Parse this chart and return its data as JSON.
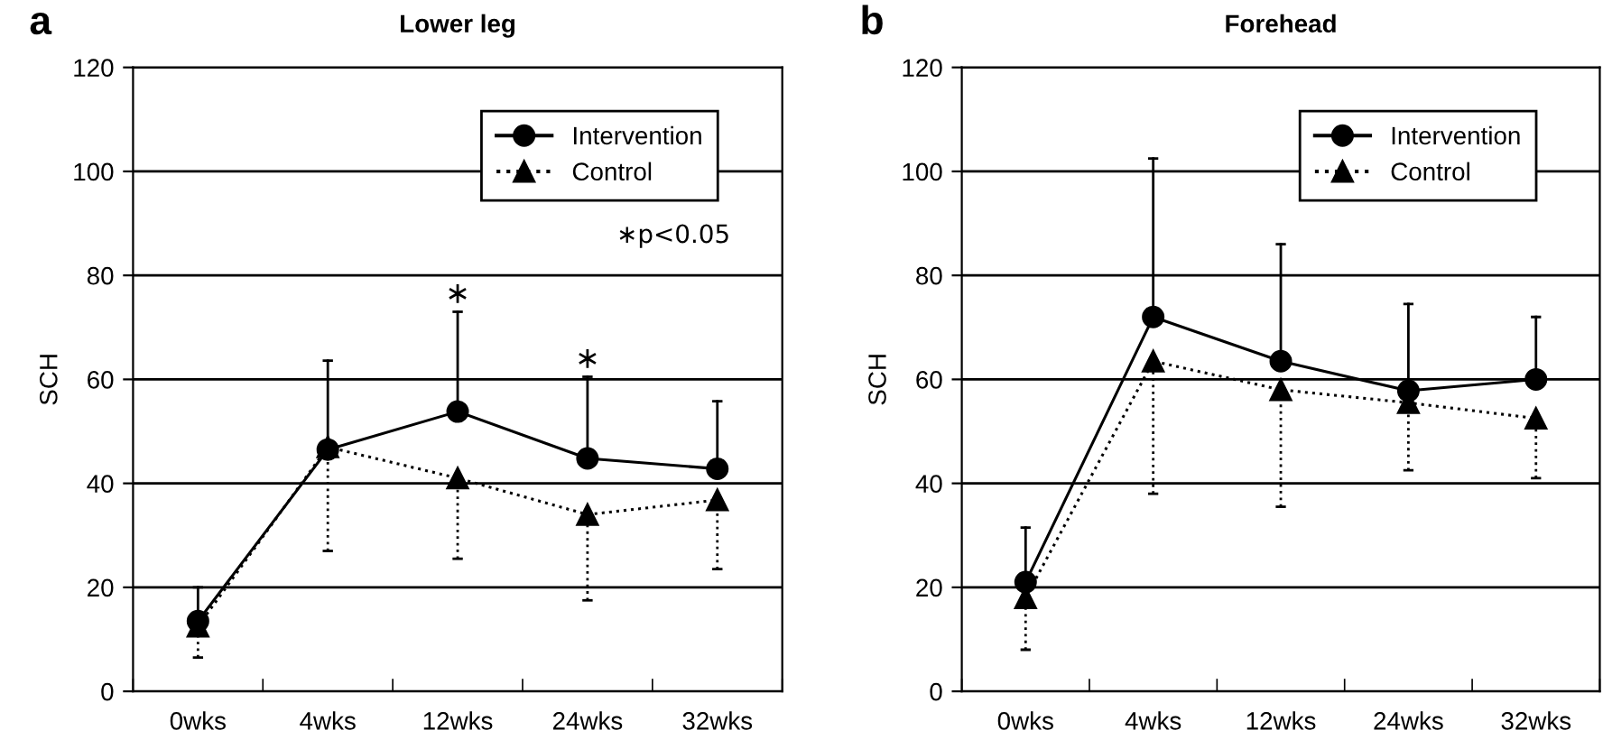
{
  "chart_data": [
    {
      "type": "line",
      "title": "Lower leg",
      "ylabel": "SCH",
      "categories": [
        "0wks",
        "4wks",
        "12wks",
        "24wks",
        "32wks"
      ],
      "series": [
        {
          "name": "Intervention",
          "color": "#000000",
          "marker": "circle",
          "line_style": "solid",
          "values": [
            13.5,
            46.5,
            53.8,
            44.8,
            42.8
          ],
          "errors": [
            [
              13.5,
              20
            ],
            [
              46.5,
              63.6
            ],
            [
              53.8,
              73
            ],
            [
              44.8,
              60.5
            ],
            [
              42.8,
              55.8
            ]
          ]
        },
        {
          "name": "Control",
          "color": "#000000",
          "marker": "triangle",
          "line_style": "dotted",
          "values": [
            12.5,
            47,
            41,
            34,
            36.8
          ],
          "errors": [
            [
              6.5,
              12.5
            ],
            [
              27,
              47
            ],
            [
              25.5,
              41
            ],
            [
              17.5,
              34
            ],
            [
              23.5,
              36.8
            ]
          ]
        }
      ],
      "ylim": [
        0,
        120
      ],
      "yticks": [
        0,
        20,
        40,
        60,
        80,
        100,
        120
      ],
      "grid": "y",
      "legend": "top right",
      "annotations": [
        "a",
        "∗p<0.05",
        {
          "text": "∗",
          "x": "12wks",
          "y": 73
        },
        {
          "text": "∗",
          "x": "24wks",
          "y": 60.5
        }
      ]
    },
    {
      "type": "line",
      "title": "Forehead",
      "ylabel": "SCH",
      "categories": [
        "0wks",
        "4wks",
        "12wks",
        "24wks",
        "32wks"
      ],
      "series": [
        {
          "name": "Intervention",
          "color": "#000000",
          "marker": "circle",
          "line_style": "solid",
          "values": [
            21,
            72,
            63.5,
            57.8,
            60
          ],
          "errors": [
            [
              21,
              31.5
            ],
            [
              72,
              102.5
            ],
            [
              63.5,
              86
            ],
            [
              57.8,
              74.5
            ],
            [
              60,
              72
            ]
          ]
        },
        {
          "name": "Control",
          "color": "#000000",
          "marker": "triangle",
          "line_style": "dotted",
          "values": [
            18,
            63.5,
            58,
            55.5,
            52.5
          ],
          "errors": [
            [
              8,
              18
            ],
            [
              38,
              63.5
            ],
            [
              35.5,
              58
            ],
            [
              42.5,
              55.5
            ],
            [
              41,
              52.5
            ]
          ]
        }
      ],
      "ylim": [
        0,
        120
      ],
      "yticks": [
        0,
        20,
        40,
        60,
        80,
        100,
        120
      ],
      "grid": "y",
      "legend": "top right",
      "annotations": [
        "b"
      ]
    }
  ]
}
